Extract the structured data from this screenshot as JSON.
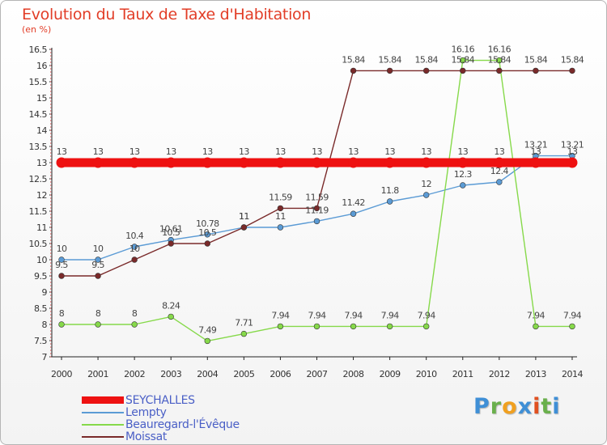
{
  "title": "Evolution du Taux de Taxe d'Habitation",
  "unit": "(en %)",
  "logo_text": "Proxiti",
  "logo_colors": [
    "#3f8fd6",
    "#6ab04c",
    "#f0a020",
    "#3f8fd6",
    "#e05020",
    "#6ab04c",
    "#3f8fd6"
  ],
  "chart_data": {
    "type": "line",
    "categories": [
      "2000",
      "2001",
      "2002",
      "2003",
      "2004",
      "2005",
      "2006",
      "2007",
      "2008",
      "2009",
      "2010",
      "2011",
      "2012",
      "2013",
      "2014"
    ],
    "ylim": [
      7,
      16.5
    ],
    "yticks": [
      "7",
      "7.5",
      "8",
      "8.5",
      "9",
      "9.5",
      "10",
      "10.5",
      "11",
      "11.5",
      "12",
      "12.5",
      "13",
      "13.5",
      "14",
      "14.5",
      "15",
      "15.5",
      "16",
      "16.5"
    ],
    "grid": false,
    "legend_position": "bottom-left",
    "series": [
      {
        "name": "SEYCHALLES",
        "color": "#ee1111",
        "values": [
          13,
          13,
          13,
          13,
          13,
          13,
          13,
          13,
          13,
          13,
          13,
          13,
          13,
          13,
          13
        ],
        "labels": [
          "13",
          "13",
          "13",
          "13",
          "13",
          "13",
          "13",
          "13",
          "13",
          "13",
          "13",
          "13",
          "13",
          "13",
          "13"
        ]
      },
      {
        "name": "Lempty",
        "color": "#5b9bd5",
        "values": [
          10,
          10,
          10.4,
          10.61,
          10.78,
          11,
          11,
          11.19,
          11.42,
          11.8,
          12,
          12.3,
          12.4,
          13.21,
          13.21
        ],
        "labels": [
          "10",
          "10",
          "10.4",
          "10.61",
          "10.78",
          "11",
          "11",
          "11.19",
          "11.42",
          "11.8",
          "12",
          "12.3",
          "12.4",
          "13.21",
          "13.21"
        ]
      },
      {
        "name": "Beauregard-l'Évêque",
        "color": "#86d94a",
        "values": [
          8,
          8,
          8,
          8.24,
          7.49,
          7.71,
          7.94,
          7.94,
          7.94,
          7.94,
          7.94,
          16.16,
          16.16,
          7.94,
          7.94
        ],
        "labels": [
          "8",
          "8",
          "8",
          "8.24",
          "7.49",
          "7.71",
          "7.94",
          "7.94",
          "7.94",
          "7.94",
          "7.94",
          "16.16",
          "16.16",
          "7.94",
          "7.94"
        ]
      },
      {
        "name": "Moissat",
        "color": "#7a2a2a",
        "values": [
          9.5,
          9.5,
          10,
          10.5,
          10.5,
          11,
          11.59,
          11.59,
          15.84,
          15.84,
          15.84,
          15.84,
          15.84,
          15.84,
          15.84
        ],
        "labels": [
          "9.5",
          "9.5",
          "10",
          "10.5",
          "10.5",
          "11",
          "11.59",
          "11.59",
          "15.84",
          "15.84",
          "15.84",
          "15.84",
          "15.84",
          "15.84",
          "15.84"
        ]
      }
    ]
  }
}
